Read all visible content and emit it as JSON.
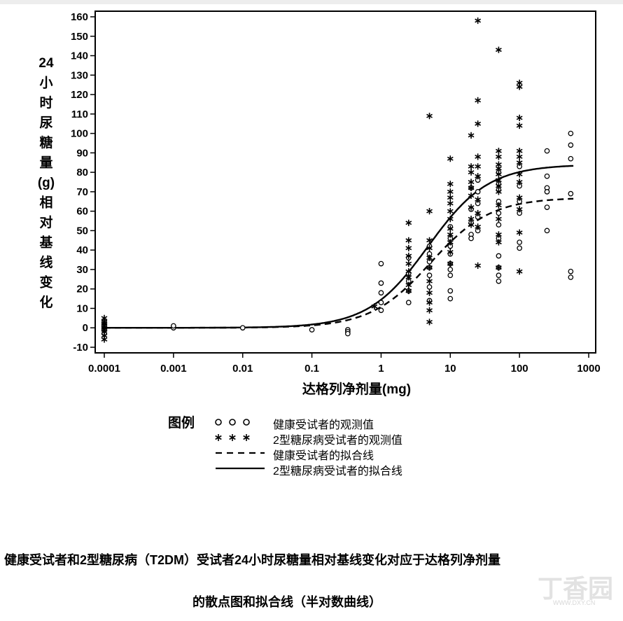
{
  "chart_data": {
    "type": "scatter",
    "x_scale": "log",
    "xlim": [
      0.0001,
      1000
    ],
    "ylim": [
      -10,
      160
    ],
    "x_ticks": [
      0.0001,
      0.001,
      0.01,
      0.1,
      1,
      10,
      100,
      1000
    ],
    "x_tick_labels": [
      "0.0001",
      "0.001",
      "0.01",
      "0.1",
      "1",
      "10",
      "100",
      "1000"
    ],
    "y_ticks": [
      -10,
      0,
      10,
      20,
      30,
      40,
      50,
      60,
      70,
      80,
      90,
      100,
      110,
      120,
      130,
      140,
      150,
      160
    ],
    "y_tick_labels": [
      "-10",
      "0",
      "10",
      "20",
      "30",
      "40",
      "50",
      "60",
      "70",
      "80",
      "90",
      "100",
      "110",
      "120",
      "130",
      "140",
      "150",
      "160"
    ],
    "xlabel": "达格列净剂量(mg)",
    "ylabel_lines": [
      "24",
      "小",
      "时",
      "尿",
      "糖",
      "量",
      "(g)",
      "相",
      "对",
      "基",
      "线",
      "变",
      "化"
    ],
    "grid": false,
    "legend_position": "bottom",
    "series": [
      {
        "name": "健康受试者的观测值",
        "marker": "circle",
        "points": [
          [
            0.0001,
            3
          ],
          [
            0.0001,
            1
          ],
          [
            0.0001,
            -1
          ],
          [
            0.0001,
            -3
          ],
          [
            0.001,
            0
          ],
          [
            0.001,
            1
          ],
          [
            0.01,
            0
          ],
          [
            0.1,
            -1
          ],
          [
            0.33,
            -1
          ],
          [
            0.33,
            -2
          ],
          [
            0.33,
            -3
          ],
          [
            1,
            33
          ],
          [
            1,
            23
          ],
          [
            1,
            18
          ],
          [
            1,
            13
          ],
          [
            1,
            9
          ],
          [
            2.5,
            36
          ],
          [
            2.5,
            28
          ],
          [
            2.5,
            24
          ],
          [
            2.5,
            19
          ],
          [
            2.5,
            13
          ],
          [
            5,
            42
          ],
          [
            5,
            38
          ],
          [
            5,
            34
          ],
          [
            5,
            31
          ],
          [
            5,
            27
          ],
          [
            5,
            21
          ],
          [
            5,
            14
          ],
          [
            10,
            52
          ],
          [
            10,
            46
          ],
          [
            10,
            42
          ],
          [
            10,
            38
          ],
          [
            10,
            33
          ],
          [
            10,
            30
          ],
          [
            10,
            27
          ],
          [
            10,
            19
          ],
          [
            10,
            15
          ],
          [
            20,
            72
          ],
          [
            20,
            61
          ],
          [
            20,
            54
          ],
          [
            20,
            48
          ],
          [
            20,
            46
          ],
          [
            25,
            76
          ],
          [
            25,
            70
          ],
          [
            25,
            64
          ],
          [
            25,
            57
          ],
          [
            25,
            50
          ],
          [
            50,
            80
          ],
          [
            50,
            74
          ],
          [
            50,
            71
          ],
          [
            50,
            65
          ],
          [
            50,
            59
          ],
          [
            50,
            53
          ],
          [
            50,
            46
          ],
          [
            50,
            37
          ],
          [
            50,
            31
          ],
          [
            50,
            27
          ],
          [
            50,
            24
          ],
          [
            100,
            83
          ],
          [
            100,
            73
          ],
          [
            100,
            65
          ],
          [
            100,
            59
          ],
          [
            100,
            44
          ],
          [
            100,
            41
          ],
          [
            250,
            91
          ],
          [
            250,
            78
          ],
          [
            250,
            72
          ],
          [
            250,
            70
          ],
          [
            250,
            62
          ],
          [
            250,
            50
          ],
          [
            550,
            100
          ],
          [
            550,
            94
          ],
          [
            550,
            87
          ],
          [
            550,
            69
          ],
          [
            550,
            29
          ],
          [
            550,
            26
          ]
        ]
      },
      {
        "name": "2型糖尿病受试者的观测值",
        "marker": "asterisk",
        "points": [
          [
            0.0001,
            5
          ],
          [
            0.0001,
            3
          ],
          [
            0.0001,
            2
          ],
          [
            0.0001,
            1
          ],
          [
            0.0001,
            0
          ],
          [
            0.0001,
            -1
          ],
          [
            0.0001,
            -2
          ],
          [
            0.0001,
            -4
          ],
          [
            0.0001,
            -6
          ],
          [
            0.8,
            11
          ],
          [
            2.5,
            54
          ],
          [
            2.5,
            45
          ],
          [
            2.5,
            41
          ],
          [
            2.5,
            37
          ],
          [
            2.5,
            33
          ],
          [
            2.5,
            29
          ],
          [
            2.5,
            26
          ],
          [
            2.5,
            22
          ],
          [
            2.5,
            19
          ],
          [
            5,
            109
          ],
          [
            5,
            60
          ],
          [
            5,
            45
          ],
          [
            5,
            41
          ],
          [
            5,
            36
          ],
          [
            5,
            31
          ],
          [
            5,
            24
          ],
          [
            5,
            18
          ],
          [
            5,
            13
          ],
          [
            5,
            9
          ],
          [
            5,
            3
          ],
          [
            10,
            87
          ],
          [
            10,
            74
          ],
          [
            10,
            70
          ],
          [
            10,
            67
          ],
          [
            10,
            64
          ],
          [
            10,
            60
          ],
          [
            10,
            56
          ],
          [
            10,
            51
          ],
          [
            10,
            48
          ],
          [
            10,
            44
          ],
          [
            10,
            39
          ],
          [
            10,
            33
          ],
          [
            20,
            99
          ],
          [
            20,
            83
          ],
          [
            20,
            80
          ],
          [
            20,
            75
          ],
          [
            20,
            72
          ],
          [
            20,
            68
          ],
          [
            20,
            62
          ],
          [
            20,
            56
          ],
          [
            20,
            53
          ],
          [
            25,
            158
          ],
          [
            25,
            117
          ],
          [
            25,
            105
          ],
          [
            25,
            88
          ],
          [
            25,
            83
          ],
          [
            25,
            78
          ],
          [
            25,
            66
          ],
          [
            25,
            59
          ],
          [
            25,
            52
          ],
          [
            25,
            32
          ],
          [
            50,
            143
          ],
          [
            50,
            91
          ],
          [
            50,
            88
          ],
          [
            50,
            84
          ],
          [
            50,
            82
          ],
          [
            50,
            79
          ],
          [
            50,
            76
          ],
          [
            50,
            73
          ],
          [
            50,
            70
          ],
          [
            50,
            63
          ],
          [
            50,
            56
          ],
          [
            50,
            48
          ],
          [
            50,
            44
          ],
          [
            50,
            31
          ],
          [
            100,
            126
          ],
          [
            100,
            124
          ],
          [
            100,
            108
          ],
          [
            100,
            104
          ],
          [
            100,
            91
          ],
          [
            100,
            88
          ],
          [
            100,
            85
          ],
          [
            100,
            79
          ],
          [
            100,
            75
          ],
          [
            100,
            67
          ],
          [
            100,
            61
          ],
          [
            100,
            49
          ],
          [
            100,
            29
          ]
        ]
      },
      {
        "name": "健康受试者的拟合线",
        "line": "dashed",
        "emax": 67,
        "ed50": 5.2,
        "hill": 1
      },
      {
        "name": "2型糖尿病受试者的拟合线",
        "line": "solid",
        "emax": 84,
        "ed50": 4.8,
        "hill": 1
      }
    ]
  },
  "legend": {
    "title": "图例",
    "items": [
      {
        "label": "健康受试者的观测值",
        "marker": "circle"
      },
      {
        "label": "2型糖尿病受试者的观测值",
        "marker": "asterisk"
      },
      {
        "label": "健康受试者的拟合线",
        "marker": "dashed"
      },
      {
        "label": "2型糖尿病受试者的拟合线",
        "marker": "solid"
      }
    ]
  },
  "caption": {
    "line1": "健康受试者和2型糖尿病（T2DM）受试者24小时尿糖量相对基线变化对应于达格列净剂量",
    "line2": "的散点图和拟合线（半对数曲线）"
  },
  "watermark": {
    "text": "丁香园",
    "url": "WWW.DXY.CN"
  }
}
